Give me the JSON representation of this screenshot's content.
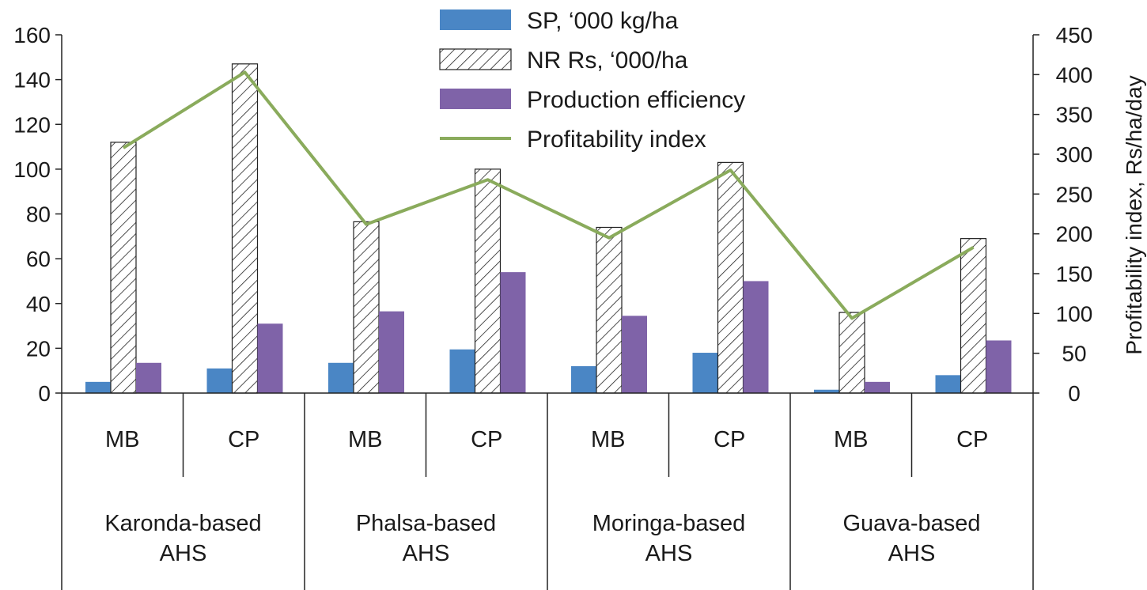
{
  "chart_data": {
    "type": "bar",
    "title": "",
    "xlabel": "",
    "ylabel": "",
    "y2label": "Profitability index, Rs/ha/day",
    "ylim": [
      0,
      160
    ],
    "yticks": [
      0,
      20,
      40,
      60,
      80,
      100,
      120,
      140,
      160
    ],
    "y2lim": [
      0,
      450
    ],
    "y2ticks": [
      0,
      50,
      100,
      150,
      200,
      250,
      300,
      350,
      400,
      450
    ],
    "groups": [
      {
        "label_line1": "Karonda-based",
        "label_line2": "AHS",
        "subcategories": [
          "MB",
          "CP"
        ]
      },
      {
        "label_line1": "Phalsa-based",
        "label_line2": "AHS",
        "subcategories": [
          "MB",
          "CP"
        ]
      },
      {
        "label_line1": "Moringa-based",
        "label_line2": "AHS",
        "subcategories": [
          "MB",
          "CP"
        ]
      },
      {
        "label_line1": "Guava-based",
        "label_line2": "AHS",
        "subcategories": [
          "MB",
          "CP"
        ]
      }
    ],
    "categories": [
      "MB",
      "CP",
      "MB",
      "CP",
      "MB",
      "CP",
      "MB",
      "CP"
    ],
    "series": [
      {
        "name": "SP, ‘000 kg/ha",
        "kind": "bar",
        "color": "#4a86c5",
        "values": [
          5,
          11,
          13.5,
          19.5,
          12,
          18,
          1.5,
          8
        ]
      },
      {
        "name": "NR Rs, ‘000/ha",
        "kind": "bar-hatched",
        "color": "#ffffff",
        "values": [
          112,
          147,
          76.5,
          100,
          74,
          103,
          36,
          69
        ]
      },
      {
        "name": "Production efficiency",
        "kind": "bar",
        "color": "#7f63a8",
        "values": [
          13.5,
          31,
          36.5,
          54,
          34.5,
          50,
          5,
          23.5
        ]
      },
      {
        "name": "Profitability index",
        "kind": "line",
        "axis": "right",
        "color": "#8aab5c",
        "values": [
          308,
          403,
          212,
          268,
          195,
          280,
          94,
          183
        ]
      }
    ],
    "legend_position": "top-center"
  }
}
